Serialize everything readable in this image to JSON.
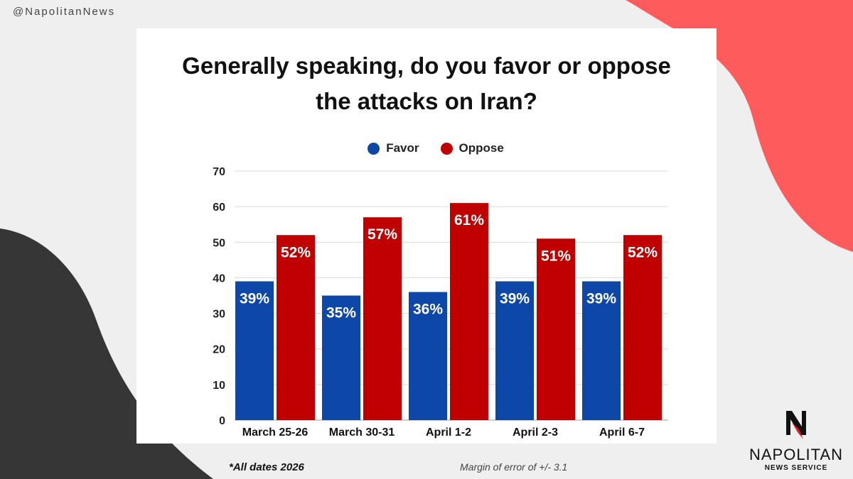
{
  "handle": "@NapolitanNews",
  "footnote": "*All dates 2026",
  "margin_of_error": "Margin of error of +/- 3.1",
  "logo": {
    "name": "NAPOLITAN",
    "sub": "NEWS SERVICE",
    "letter": "N"
  },
  "colors": {
    "favor": "#0d47a8",
    "oppose": "#c00000",
    "blob_red": "#fe5c5c",
    "blob_dark": "#363636"
  },
  "chart_data": {
    "type": "bar",
    "title": "Generally speaking, do you favor or oppose the attacks on Iran?",
    "title_lines": [
      "Generally speaking, do you favor or oppose",
      "the attacks on Iran?"
    ],
    "categories": [
      "March 25-26",
      "March 30-31",
      "April 1-2",
      "April 2-3",
      "April 6-7"
    ],
    "series": [
      {
        "name": "Favor",
        "values": [
          39,
          35,
          36,
          39,
          39
        ],
        "labels": [
          "39%",
          "35%",
          "36%",
          "39%",
          "39%"
        ]
      },
      {
        "name": "Oppose",
        "values": [
          52,
          57,
          61,
          51,
          52
        ],
        "labels": [
          "52%",
          "57%",
          "61%",
          "51%",
          "52%"
        ]
      }
    ],
    "ylim": [
      0,
      70
    ],
    "yticks": [
      0,
      10,
      20,
      30,
      40,
      50,
      60,
      70
    ],
    "grid": true,
    "legend_position": "top-center",
    "xlabel": "",
    "ylabel": ""
  }
}
